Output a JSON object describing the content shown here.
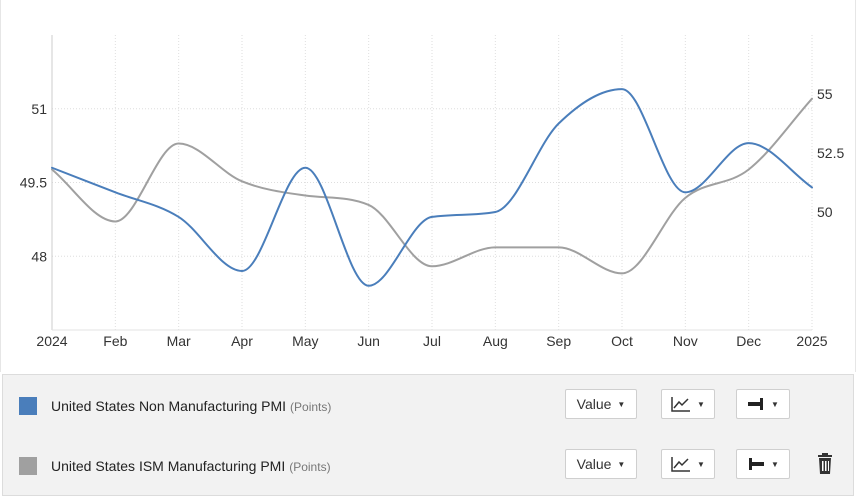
{
  "chart_data": {
    "type": "line",
    "x_labels": [
      "2024",
      "Feb",
      "Mar",
      "Apr",
      "May",
      "Jun",
      "Jul",
      "Aug",
      "Sep",
      "Oct",
      "Nov",
      "Dec",
      "2025"
    ],
    "left_axis": {
      "ticks": [
        "51",
        "49.5",
        "48"
      ],
      "tick_values": [
        51,
        49.5,
        48
      ],
      "range": [
        46.5,
        52.5
      ]
    },
    "right_axis": {
      "ticks": [
        "55",
        "52.5",
        "50"
      ],
      "tick_values": [
        55,
        52.5,
        50
      ],
      "range": [
        45,
        57.5
      ]
    },
    "grid": true,
    "series": [
      {
        "name": "United States Non Manufacturing PMI",
        "unit": "Points",
        "axis": "left",
        "color": "#4a7ebb",
        "values": [
          49.8,
          49.3,
          48.8,
          47.7,
          49.8,
          47.4,
          48.8,
          48.9,
          50.7,
          51.4,
          49.3,
          50.3,
          49.4
        ]
      },
      {
        "name": "United States ISM Manufacturing PMI",
        "unit": "Points",
        "axis": "right",
        "color": "#a0a0a0",
        "values": [
          51.8,
          49.6,
          52.9,
          51.3,
          50.7,
          50.3,
          47.7,
          48.5,
          48.5,
          47.4,
          50.6,
          51.8,
          54.8
        ]
      }
    ]
  },
  "legend": {
    "items": [
      {
        "name": "United States Non Manufacturing PMI",
        "unit": "(Points)",
        "color": "#4a7ebb",
        "value_label": "Value"
      },
      {
        "name": "United States ISM Manufacturing PMI",
        "unit": "(Points)",
        "color": "#a0a0a0",
        "value_label": "Value"
      }
    ],
    "icons": {
      "chart_type": "line-chart-icon",
      "axis_right": "axis-right-icon",
      "axis_left": "axis-left-icon",
      "delete": "trash-icon"
    }
  }
}
